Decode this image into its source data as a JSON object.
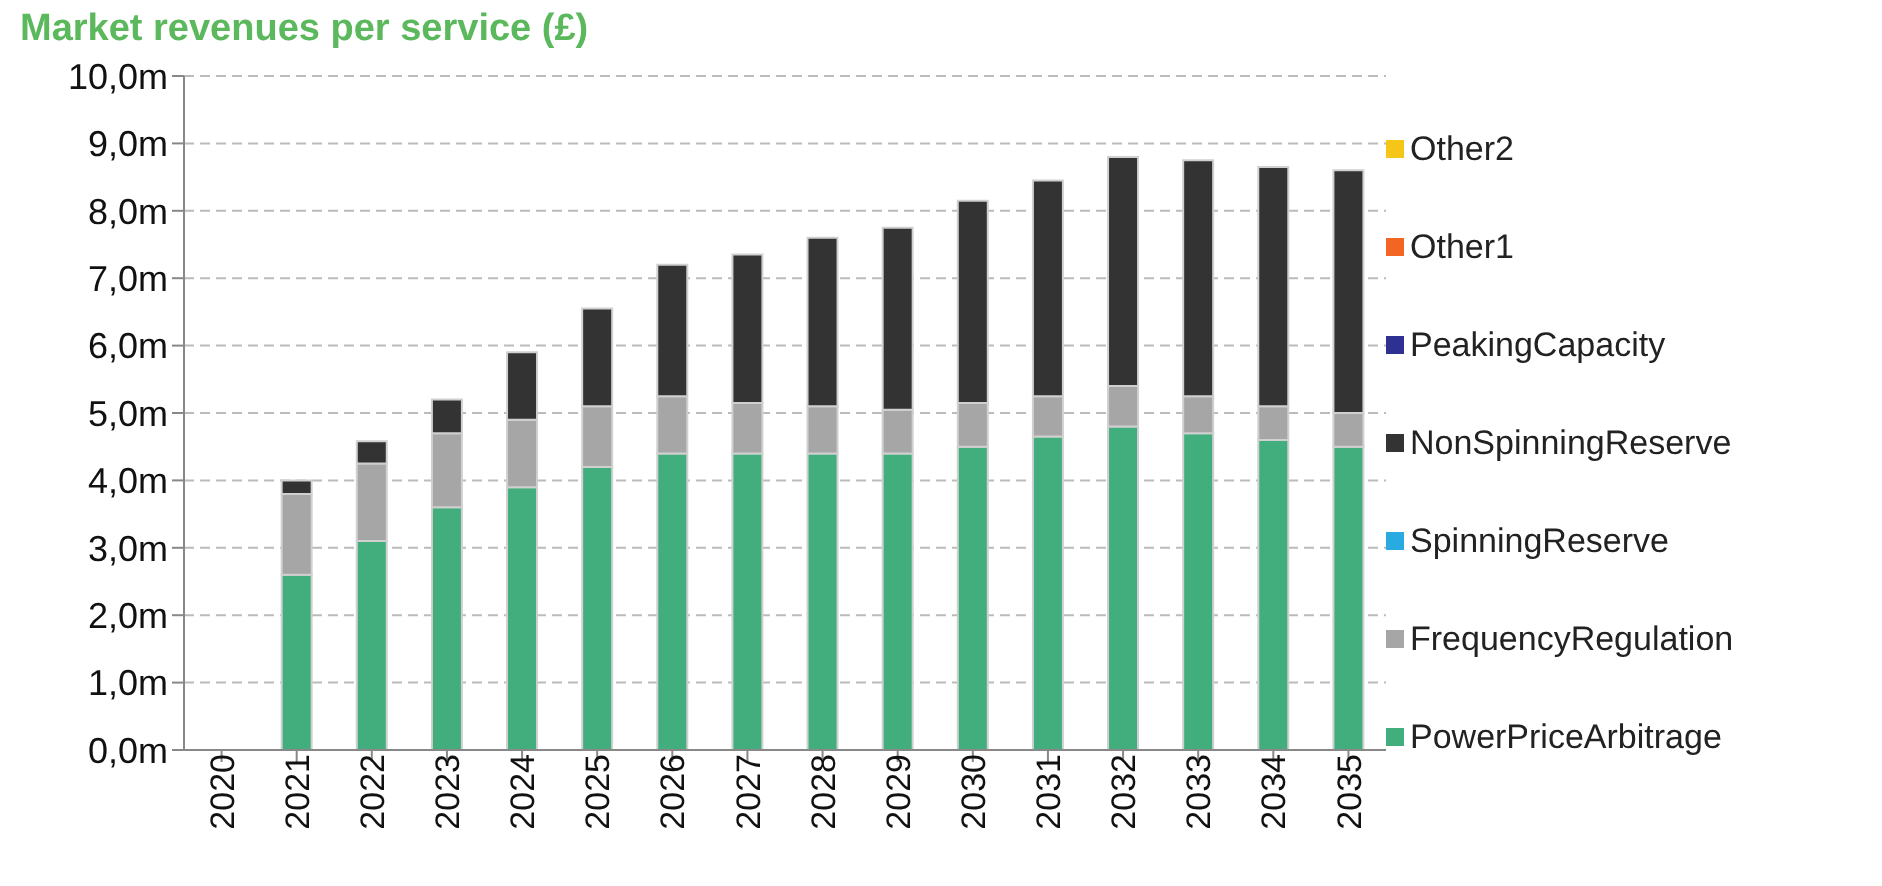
{
  "chart_data": {
    "type": "bar",
    "title": "Market revenues per service (£)",
    "stacked": true,
    "grid": "y",
    "legend": "right",
    "categories": [
      "2020",
      "2021",
      "2022",
      "2023",
      "2024",
      "2025",
      "2026",
      "2027",
      "2028",
      "2029",
      "2030",
      "2031",
      "2032",
      "2033",
      "2034",
      "2035"
    ],
    "ylim": [
      0,
      10
    ],
    "yticks": [
      {
        "value": 0,
        "label": "0,0m"
      },
      {
        "value": 1,
        "label": "1,0m"
      },
      {
        "value": 2,
        "label": "2,0m"
      },
      {
        "value": 3,
        "label": "3,0m"
      },
      {
        "value": 4,
        "label": "4,0m"
      },
      {
        "value": 5,
        "label": "5,0m"
      },
      {
        "value": 6,
        "label": "6,0m"
      },
      {
        "value": 7,
        "label": "7,0m"
      },
      {
        "value": 8,
        "label": "8,0m"
      },
      {
        "value": 9,
        "label": "9,0m"
      },
      {
        "value": 10,
        "label": "10,0m"
      }
    ],
    "series": [
      {
        "name": "PowerPriceArbitrage",
        "color": "#43ae7d",
        "values": [
          0,
          2.6,
          3.1,
          3.6,
          3.9,
          4.2,
          4.4,
          4.4,
          4.4,
          4.4,
          4.5,
          4.65,
          4.8,
          4.7,
          4.6,
          4.5
        ]
      },
      {
        "name": "FrequencyRegulation",
        "color": "#a6a6a6",
        "values": [
          0,
          1.2,
          1.15,
          1.1,
          1.0,
          0.9,
          0.85,
          0.75,
          0.7,
          0.65,
          0.65,
          0.6,
          0.6,
          0.55,
          0.5,
          0.5
        ]
      },
      {
        "name": "SpinningReserve",
        "color": "#29abe2",
        "values": [
          0,
          0,
          0,
          0,
          0,
          0,
          0,
          0,
          0,
          0,
          0,
          0,
          0,
          0,
          0,
          0
        ]
      },
      {
        "name": "NonSpinningReserve",
        "color": "#333333",
        "values": [
          0,
          0.2,
          0.33,
          0.5,
          1.0,
          1.45,
          1.95,
          2.2,
          2.5,
          2.7,
          3.0,
          3.2,
          3.4,
          3.5,
          3.55,
          3.6
        ]
      },
      {
        "name": "PeakingCapacity",
        "color": "#2e3192",
        "values": [
          0,
          0,
          0,
          0,
          0,
          0,
          0,
          0,
          0,
          0,
          0,
          0,
          0,
          0,
          0,
          0
        ]
      },
      {
        "name": "Other1",
        "color": "#f26522",
        "values": [
          0,
          0,
          0,
          0,
          0,
          0,
          0,
          0,
          0,
          0,
          0,
          0,
          0,
          0,
          0,
          0
        ]
      },
      {
        "name": "Other2",
        "color": "#f5c518",
        "values": [
          0,
          0,
          0,
          0,
          0,
          0,
          0,
          0,
          0,
          0,
          0,
          0,
          0,
          0,
          0,
          0
        ]
      }
    ]
  }
}
